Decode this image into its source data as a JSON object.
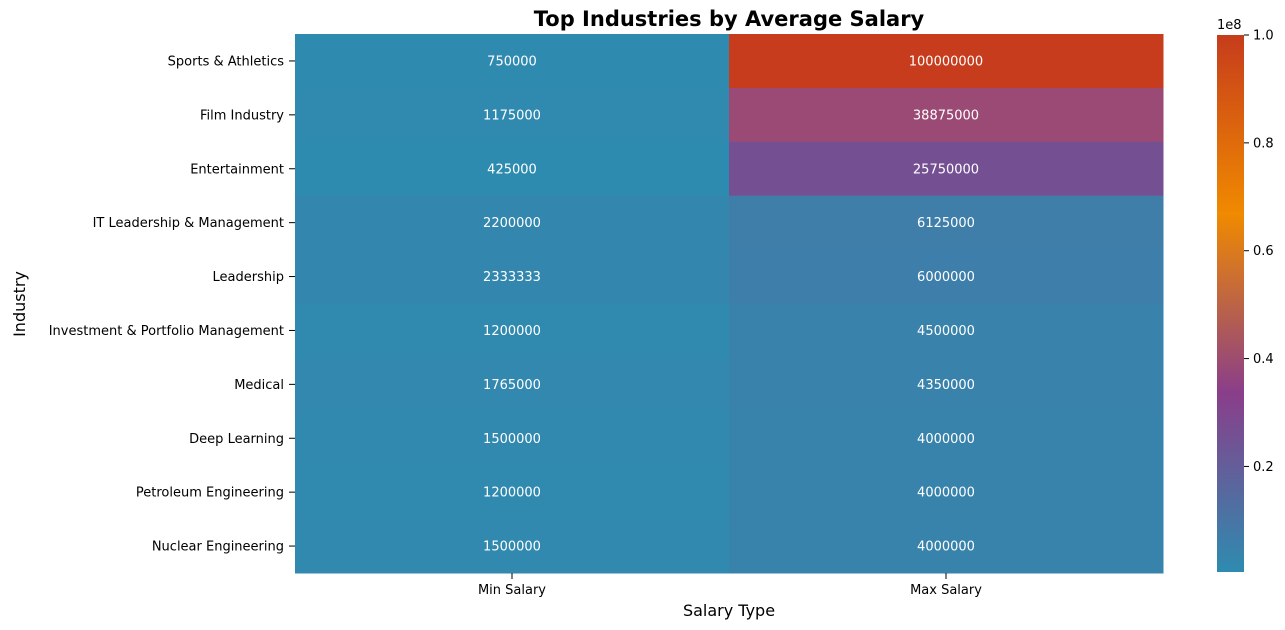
{
  "chart_data": {
    "type": "heatmap",
    "title": "Top Industries by Average Salary",
    "xlabel": "Salary Type",
    "ylabel": "Industry",
    "columns": [
      "Min Salary",
      "Max Salary"
    ],
    "rows": [
      "Sports & Athletics",
      "Film Industry",
      "Entertainment",
      "IT Leadership & Management",
      "Leadership",
      "Investment & Portfolio Management",
      "Medical",
      "Deep Learning",
      "Petroleum Engineering",
      "Nuclear Engineering"
    ],
    "values": [
      [
        750000,
        100000000
      ],
      [
        1175000,
        38875000
      ],
      [
        425000,
        25750000
      ],
      [
        2200000,
        6125000
      ],
      [
        2333333,
        6000000
      ],
      [
        1200000,
        4500000
      ],
      [
        1765000,
        4350000
      ],
      [
        1500000,
        4000000
      ],
      [
        1200000,
        4000000
      ],
      [
        1500000,
        4000000
      ]
    ],
    "colorbar": {
      "exponent_label": "1e8",
      "range": [
        425000,
        100000000
      ],
      "tick_values": [
        0.2,
        0.4,
        0.6,
        0.8,
        1.0
      ],
      "tick_labels": [
        "0.2",
        "0.4",
        "0.6",
        "0.8",
        "1.0"
      ],
      "colors": [
        "#2e8bb0",
        "#8a3e8a",
        "#f08a00",
        "#c63c1c"
      ]
    },
    "annotation_color": "#ffffff"
  }
}
